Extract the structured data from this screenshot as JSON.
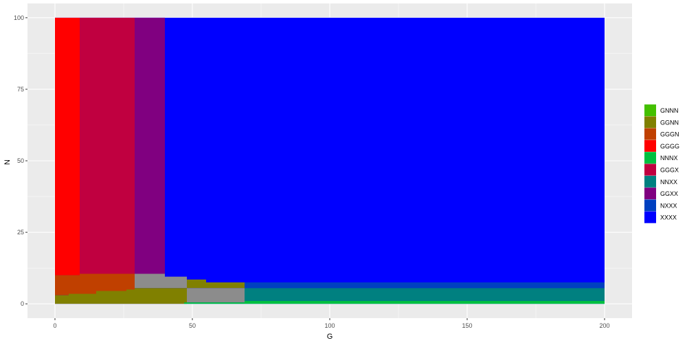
{
  "chart_data": {
    "type": "heatmap",
    "title": "",
    "xlabel": "G",
    "ylabel": "N",
    "xlim": [
      -10,
      210
    ],
    "ylim": [
      -5,
      105
    ],
    "x_ticks": [
      0,
      50,
      100,
      150,
      200
    ],
    "y_ticks": [
      0,
      25,
      50,
      75,
      100
    ],
    "grid": true,
    "legend_position": "right",
    "legend": [
      {
        "label": "GNNN",
        "color": "#44c000"
      },
      {
        "label": "GGNN",
        "color": "#808000"
      },
      {
        "label": "GGGN",
        "color": "#c04000"
      },
      {
        "label": "GGGG",
        "color": "#ff0000"
      },
      {
        "label": "NNNX",
        "color": "#00c040"
      },
      {
        "label": "GGGX",
        "color": "#c00040"
      },
      {
        "label": "NNXX",
        "color": "#008080"
      },
      {
        "label": "GGXX",
        "color": "#800080"
      },
      {
        "label": "NXXX",
        "color": "#0040c0"
      },
      {
        "label": "XXXX",
        "color": "#0000ff"
      }
    ],
    "regions": [
      {
        "category": "XXXX",
        "x": [
          0,
          200
        ],
        "y": [
          0,
          100
        ]
      },
      {
        "category": "GGGG",
        "x": [
          0,
          9
        ],
        "y": [
          10,
          100
        ]
      },
      {
        "category": "GGGX",
        "x": [
          9,
          29
        ],
        "y": [
          10,
          100
        ]
      },
      {
        "category": "GGXX",
        "x": [
          29,
          40
        ],
        "y": [
          10,
          100
        ]
      },
      {
        "category": "GGGN",
        "x": [
          0,
          9
        ],
        "y": [
          3,
          10
        ]
      },
      {
        "category": "GGGN",
        "x": [
          9,
          29
        ],
        "y": [
          3,
          10.5
        ]
      },
      {
        "category": "GGNN",
        "x": [
          0,
          5
        ],
        "y": [
          0,
          3
        ]
      },
      {
        "category": "GGNN",
        "x": [
          5,
          15
        ],
        "y": [
          0,
          3.5
        ]
      },
      {
        "category": "GGNN",
        "x": [
          15,
          26
        ],
        "y": [
          0,
          4.5
        ]
      },
      {
        "category": "GGNN",
        "x": [
          26,
          29
        ],
        "y": [
          0,
          5
        ]
      },
      {
        "category": "unassigned",
        "x": [
          29,
          40
        ],
        "y": [
          5.5,
          10.5
        ]
      },
      {
        "category": "unassigned",
        "x": [
          40,
          48
        ],
        "y": [
          5.5,
          9.5
        ]
      },
      {
        "category": "GGNN",
        "x": [
          29,
          48
        ],
        "y": [
          0,
          5.5
        ]
      },
      {
        "category": "GGNN",
        "x": [
          48,
          55
        ],
        "y": [
          5.5,
          8.5
        ]
      },
      {
        "category": "GGNN",
        "x": [
          55,
          69
        ],
        "y": [
          5.5,
          7.5
        ]
      },
      {
        "category": "unassigned",
        "x": [
          48,
          69
        ],
        "y": [
          0.5,
          5.5
        ]
      },
      {
        "category": "NNNX",
        "x": [
          47,
          69
        ],
        "y": [
          0,
          0.5
        ]
      },
      {
        "category": "NXXX",
        "x": [
          69,
          200
        ],
        "y": [
          5.5,
          7.5
        ]
      },
      {
        "category": "NNXX",
        "x": [
          69,
          200
        ],
        "y": [
          1,
          5.5
        ]
      },
      {
        "category": "NNNX",
        "x": [
          69,
          200
        ],
        "y": [
          0,
          1
        ]
      }
    ],
    "unassigned_color": "#8c8c8c",
    "panel_background": "#ebebeb"
  }
}
